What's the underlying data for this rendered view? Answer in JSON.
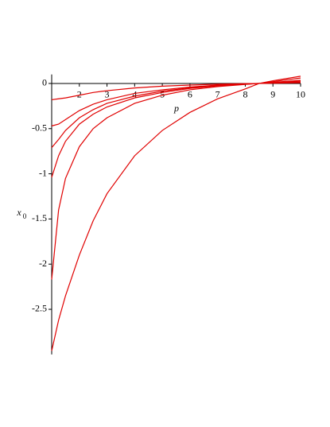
{
  "chart_data": {
    "type": "line",
    "x_label": "p",
    "y_label": "x",
    "y_label_subscript": "0",
    "x": [
      1,
      1.25,
      1.5,
      2,
      2.5,
      3,
      4,
      5,
      6,
      7,
      8,
      8.5,
      9,
      10
    ],
    "series": [
      {
        "color": "#e00000",
        "values": [
          -0.18,
          -0.17,
          -0.16,
          -0.13,
          -0.1,
          -0.08,
          -0.05,
          -0.03,
          -0.018,
          -0.008,
          -0.002,
          0,
          0.003,
          0.008
        ]
      },
      {
        "color": "#e00000",
        "values": [
          -0.47,
          -0.45,
          -0.4,
          -0.3,
          -0.23,
          -0.18,
          -0.11,
          -0.07,
          -0.04,
          -0.018,
          -0.005,
          0,
          0.006,
          0.015
        ]
      },
      {
        "color": "#e00000",
        "values": [
          -0.71,
          -0.62,
          -0.52,
          -0.38,
          -0.29,
          -0.22,
          -0.14,
          -0.085,
          -0.048,
          -0.022,
          -0.006,
          0,
          0.009,
          0.025
        ]
      },
      {
        "color": "#e00000",
        "values": [
          -1.04,
          -0.8,
          -0.64,
          -0.45,
          -0.34,
          -0.26,
          -0.16,
          -0.1,
          -0.055,
          -0.027,
          -0.008,
          0,
          0.012,
          0.035
        ]
      },
      {
        "color": "#e00000",
        "values": [
          -2.17,
          -1.4,
          -1.05,
          -0.7,
          -0.5,
          -0.38,
          -0.22,
          -0.13,
          -0.07,
          -0.035,
          -0.01,
          0,
          0.02,
          0.06
        ]
      },
      {
        "color": "#e00000",
        "values": [
          -2.96,
          -2.62,
          -2.35,
          -1.9,
          -1.52,
          -1.22,
          -0.8,
          -0.52,
          -0.32,
          -0.17,
          -0.06,
          0,
          0.03,
          0.08
        ]
      }
    ],
    "xlim": [
      1,
      10
    ],
    "ylim": [
      -3,
      0.1
    ],
    "xticks": [
      2,
      3,
      4,
      5,
      6,
      7,
      8,
      9,
      10
    ],
    "yticks": [
      0,
      -0.5,
      -1,
      -1.5,
      -2,
      -2.5
    ]
  }
}
